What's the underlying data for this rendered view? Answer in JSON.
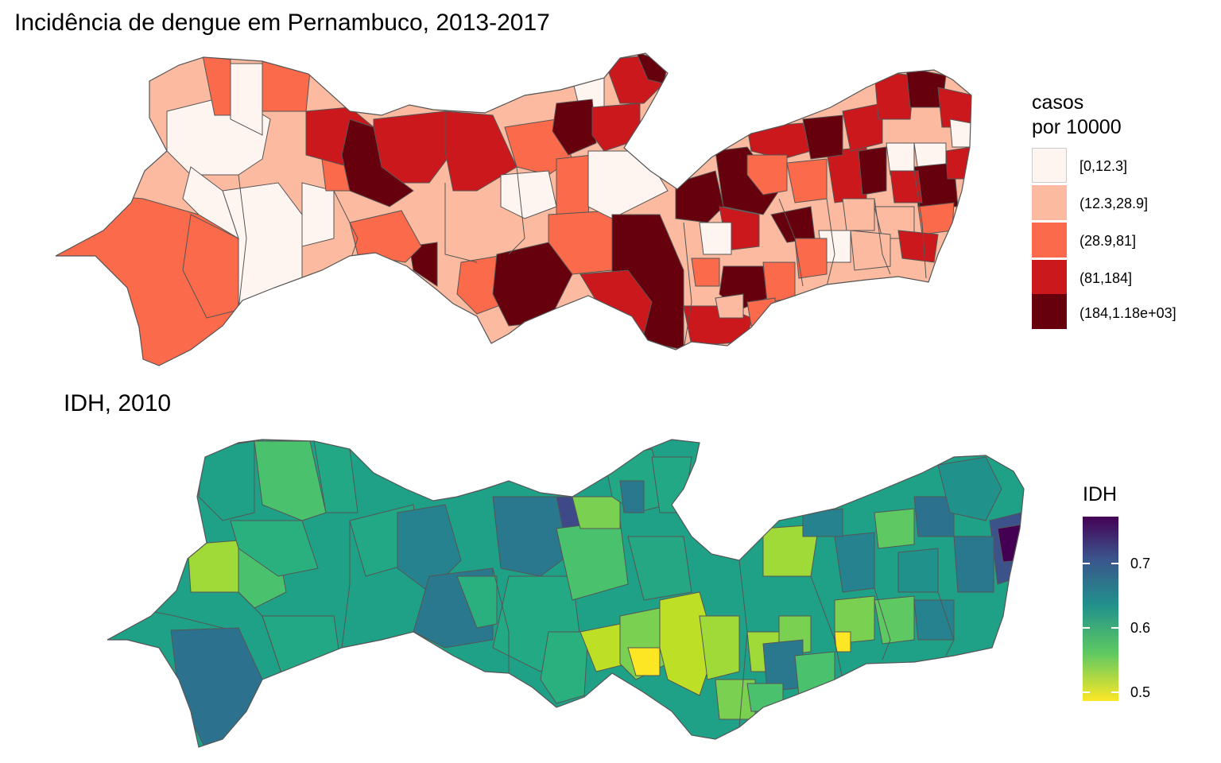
{
  "top_map": {
    "title": "Incidência de dengue em Pernambuco, 2013-2017",
    "legend": {
      "title_line1": "casos",
      "title_line2": "por 10000",
      "items": [
        {
          "label": "[0,12.3]",
          "color": "#fff5f0"
        },
        {
          "label": "(12.3,28.9]",
          "color": "#fcbba1"
        },
        {
          "label": "(28.9,81]",
          "color": "#fb6a4a"
        },
        {
          "label": "(81,184]",
          "color": "#cb181d"
        },
        {
          "label": "(184,1.18e+03]",
          "color": "#67000d"
        }
      ]
    }
  },
  "bottom_map": {
    "title": "IDH, 2010",
    "legend": {
      "title": "IDH",
      "ticks": [
        "0.7",
        "0.6",
        "0.5"
      ],
      "colors": [
        "#440154",
        "#3b528b",
        "#21918c",
        "#5ec962",
        "#fde725"
      ]
    }
  }
}
